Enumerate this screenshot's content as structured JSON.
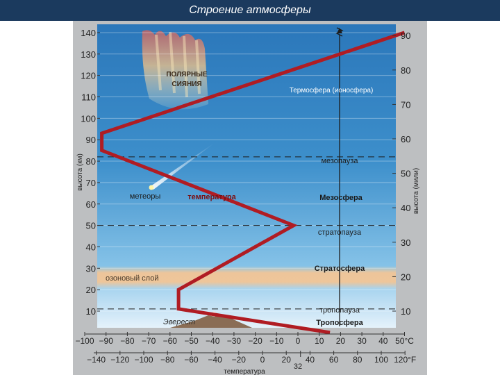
{
  "header": {
    "title": "Строение атмосферы"
  },
  "axes": {
    "left_label": "высота (км)",
    "right_label": "высота (мили)",
    "left_ticks": [
      "140",
      "130",
      "120",
      "110",
      "100",
      "90",
      "80",
      "70",
      "60",
      "50",
      "40",
      "30",
      "20",
      "10"
    ],
    "right_ticks": [
      "90",
      "80",
      "70",
      "60",
      "50",
      "40",
      "30",
      "20",
      "10"
    ],
    "celsius_ticks": [
      "−100",
      "−90",
      "−80",
      "−70",
      "−60",
      "−50",
      "−40",
      "−30",
      "−20",
      "−10",
      "0",
      "10",
      "20",
      "30",
      "40",
      "50°C"
    ],
    "fahrenheit_ticks": [
      "−140",
      "−120",
      "−100",
      "−80",
      "−60",
      "−40",
      "−20",
      "0",
      "20",
      "40",
      "60",
      "80",
      "100",
      "120°F"
    ],
    "fahrenheit_extra": "32",
    "bottom_label": "температура"
  },
  "labels": {
    "aurora": [
      "ПОЛЯРНЫЕ",
      "СИЯНИЯ"
    ],
    "thermosphere": "Термосфера (ионосфера)",
    "mesopause": "мезопауза",
    "meteors": "метеоры",
    "temperature": "температура",
    "mesosphere": "Мезосфера",
    "stratopause": "стратопауза",
    "stratosphere": "Стратосфера",
    "ozone": "озоновый слой",
    "tropopause": "тропопауза",
    "troposphere": "Тропосфера",
    "everest": "Эверест"
  },
  "temperature_profile": [
    {
      "alt_km": 0,
      "temp_c": 15
    },
    {
      "alt_km": 11,
      "temp_c": -56
    },
    {
      "alt_km": 20,
      "temp_c": -56
    },
    {
      "alt_km": 50,
      "temp_c": -2
    },
    {
      "alt_km": 85,
      "temp_c": -92
    },
    {
      "alt_km": 93,
      "temp_c": -92
    },
    {
      "alt_km": 140,
      "temp_c": 50
    }
  ],
  "colors": {
    "title_bg": "#1b3a5e",
    "temp_line": "#b01c23",
    "ozone": "#f0c89a"
  }
}
